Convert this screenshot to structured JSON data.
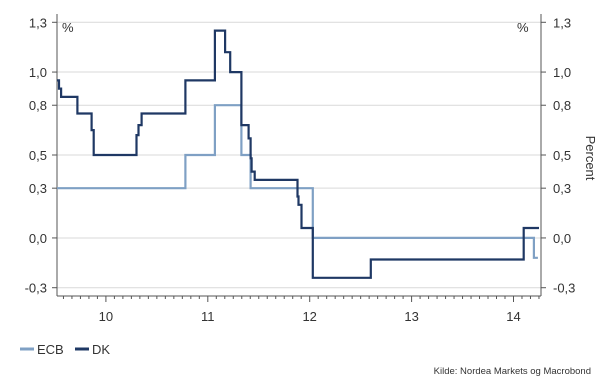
{
  "chart_data": {
    "type": "line",
    "title": "",
    "ylabel_left_unit": "%",
    "ylabel_right_unit": "%",
    "ylabel_right": "Percent",
    "xlabel": "",
    "ylim": [
      -0.35,
      1.35
    ],
    "xlim": [
      9.52,
      14.27
    ],
    "y_ticks": [
      {
        "value": 1.3,
        "label": "1,3"
      },
      {
        "value": 1.0,
        "label": "1,0"
      },
      {
        "value": 0.8,
        "label": "0,8"
      },
      {
        "value": 0.5,
        "label": "0,5"
      },
      {
        "value": 0.3,
        "label": "0,3"
      },
      {
        "value": 0.0,
        "label": "0,0"
      },
      {
        "value": -0.3,
        "label": "-0,3"
      }
    ],
    "x_ticks": [
      {
        "value": 10,
        "label": "10"
      },
      {
        "value": 11,
        "label": "11"
      },
      {
        "value": 12,
        "label": "12"
      },
      {
        "value": 13,
        "label": "13"
      },
      {
        "value": 14,
        "label": "14"
      }
    ],
    "grid": true,
    "legend": "bottom-left",
    "series": [
      {
        "name": "ECB",
        "color": "#7fa0c4",
        "step": true,
        "x": [
          9.52,
          10.78,
          11.07,
          11.33,
          11.42,
          11.93,
          12.03,
          14.17,
          14.2,
          14.24
        ],
        "y": [
          0.3,
          0.5,
          0.8,
          0.5,
          0.3,
          0.3,
          0.0,
          0.0,
          -0.12,
          -0.12
        ]
      },
      {
        "name": "DK",
        "color": "#1f3864",
        "step": true,
        "x": [
          9.52,
          9.54,
          9.56,
          9.72,
          9.86,
          9.88,
          10.3,
          10.32,
          10.35,
          10.78,
          11.07,
          11.17,
          11.22,
          11.33,
          11.35,
          11.4,
          11.42,
          11.43,
          11.46,
          11.88,
          11.89,
          11.92,
          11.95,
          12.02,
          12.03,
          12.57,
          12.6,
          14.08,
          14.1,
          14.25
        ],
        "y": [
          0.95,
          0.9,
          0.85,
          0.75,
          0.65,
          0.5,
          0.62,
          0.68,
          0.75,
          0.95,
          1.25,
          1.12,
          1.0,
          0.68,
          0.68,
          0.6,
          0.48,
          0.4,
          0.35,
          0.25,
          0.2,
          0.06,
          0.06,
          0.06,
          -0.24,
          -0.24,
          -0.13,
          -0.13,
          0.06,
          0.06
        ]
      }
    ],
    "source": "Kilde: Nordea Markets og Macrobond"
  }
}
